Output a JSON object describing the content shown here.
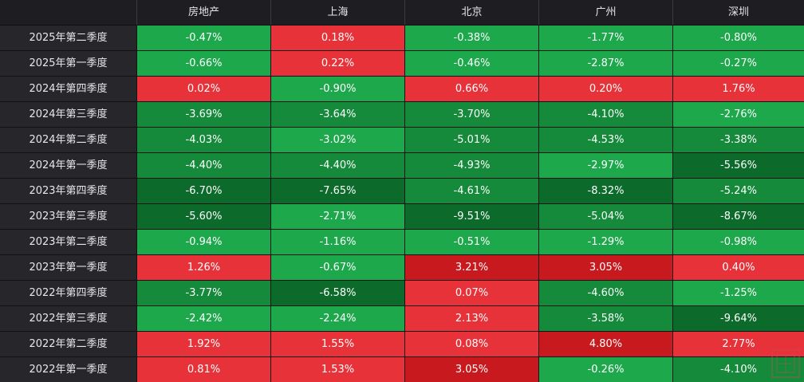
{
  "chart_data": {
    "type": "heatmap",
    "columns": [
      "房地产",
      "上海",
      "北京",
      "广州",
      "深圳"
    ],
    "rows": [
      {
        "label": "2025年第二季度",
        "values": [
          "-0.47%",
          "0.18%",
          "-0.38%",
          "-1.77%",
          "-0.80%"
        ]
      },
      {
        "label": "2025年第一季度",
        "values": [
          "-0.66%",
          "0.22%",
          "-0.46%",
          "-2.87%",
          "-0.27%"
        ]
      },
      {
        "label": "2024年第四季度",
        "values": [
          "0.02%",
          "-0.90%",
          "0.66%",
          "0.20%",
          "1.76%"
        ]
      },
      {
        "label": "2024年第三季度",
        "values": [
          "-3.69%",
          "-3.64%",
          "-3.70%",
          "-4.10%",
          "-2.76%"
        ]
      },
      {
        "label": "2024年第二季度",
        "values": [
          "-4.03%",
          "-3.02%",
          "-5.01%",
          "-4.53%",
          "-3.38%"
        ]
      },
      {
        "label": "2024年第一季度",
        "values": [
          "-4.40%",
          "-4.40%",
          "-4.93%",
          "-2.97%",
          "-5.56%"
        ]
      },
      {
        "label": "2023年第四季度",
        "values": [
          "-6.70%",
          "-7.65%",
          "-4.61%",
          "-8.32%",
          "-5.24%"
        ]
      },
      {
        "label": "2023年第三季度",
        "values": [
          "-5.60%",
          "-2.71%",
          "-9.51%",
          "-5.04%",
          "-8.67%"
        ]
      },
      {
        "label": "2023年第二季度",
        "values": [
          "-0.94%",
          "-1.16%",
          "-0.51%",
          "-1.29%",
          "-0.98%"
        ]
      },
      {
        "label": "2023年第一季度",
        "values": [
          "1.26%",
          "-0.67%",
          "3.21%",
          "3.05%",
          "0.40%"
        ]
      },
      {
        "label": "2022年第四季度",
        "values": [
          "-3.77%",
          "-6.58%",
          "0.07%",
          "-4.60%",
          "-1.25%"
        ]
      },
      {
        "label": "2022年第三季度",
        "values": [
          "-2.42%",
          "-2.24%",
          "2.13%",
          "-3.58%",
          "-9.64%"
        ]
      },
      {
        "label": "2022年第二季度",
        "values": [
          "1.92%",
          "1.55%",
          "0.08%",
          "4.80%",
          "2.77%"
        ]
      },
      {
        "label": "2022年第一季度",
        "values": [
          "0.81%",
          "1.53%",
          "3.05%",
          "-0.26%",
          "-4.10%"
        ]
      }
    ],
    "colors": {
      "positive_light": "#e8323a",
      "positive_dark": "#c81a1e",
      "negative_light": "#1ea84c",
      "negative_mid": "#148a3a",
      "negative_dark": "#0c6a2a",
      "background": "#1e1e22",
      "row_label_bg": "#26262b"
    },
    "title": "",
    "xlabel": "",
    "ylabel": ""
  }
}
